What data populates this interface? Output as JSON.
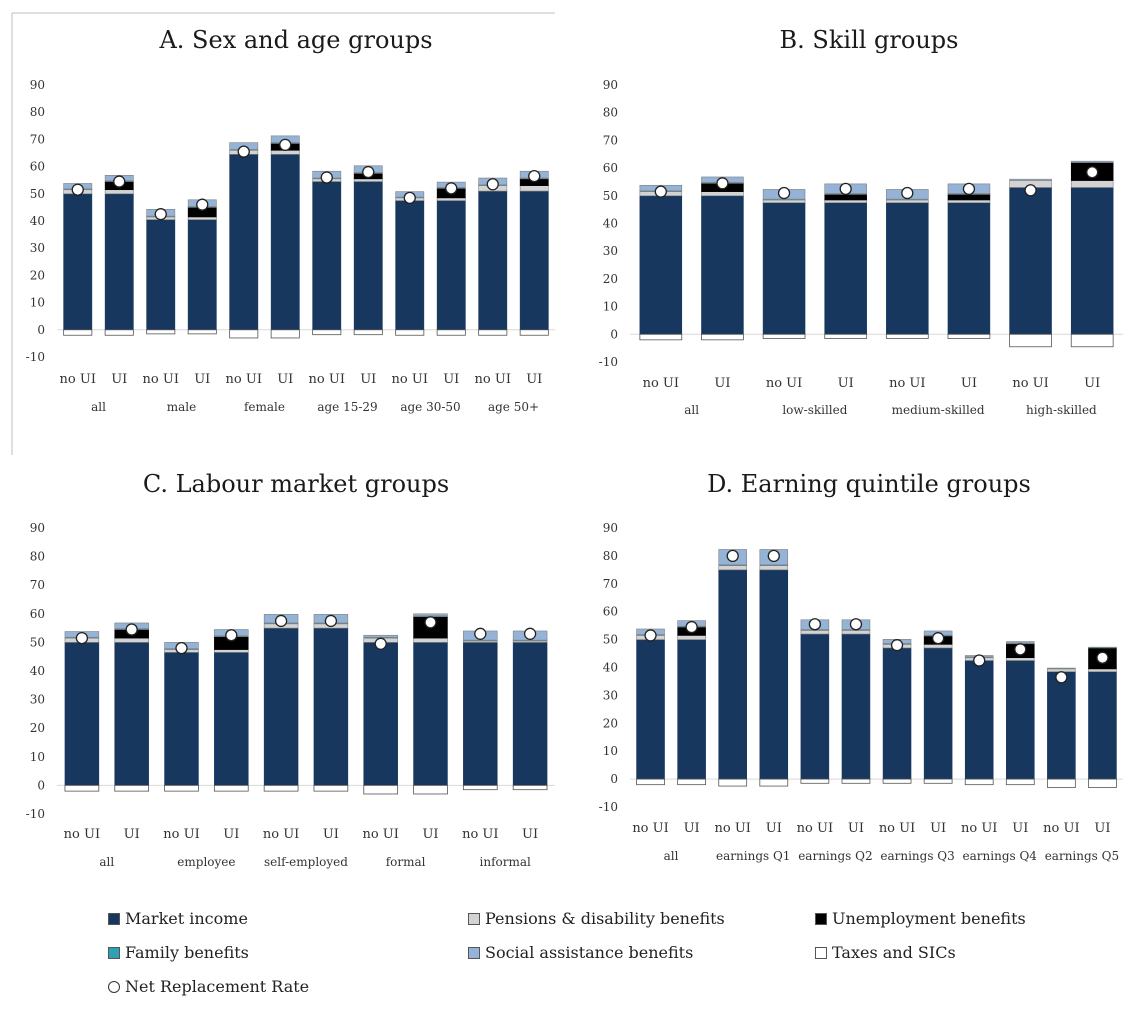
{
  "colors": {
    "market": "#17375e",
    "pensions": "#d3d3d3",
    "unemployment": "#000000",
    "family": "#31a0b5",
    "social": "#95b3d7",
    "taxes": "#ffffff",
    "nrr": "#ffffff"
  },
  "legend": [
    {
      "key": "market",
      "label": "Market income",
      "shape": "square"
    },
    {
      "key": "pensions",
      "label": "Pensions & disability benefits",
      "shape": "square"
    },
    {
      "key": "unemployment",
      "label": "Unemployment benefits",
      "shape": "square"
    },
    {
      "key": "family",
      "label": "Family benefits",
      "shape": "square"
    },
    {
      "key": "social",
      "label": "Social assistance benefits",
      "shape": "square"
    },
    {
      "key": "taxes",
      "label": "Taxes and SICs",
      "shape": "square"
    },
    {
      "key": "nrr",
      "label": "Net Replacement Rate",
      "shape": "circle"
    }
  ],
  "chart_data": [
    {
      "type": "bar",
      "stacked": true,
      "title": "A. Sex and age groups",
      "ylim": [
        -10,
        90
      ],
      "yticks": [
        -10,
        0,
        10,
        20,
        30,
        40,
        50,
        60,
        70,
        80,
        90
      ],
      "groups": [
        "all",
        "male",
        "female",
        "age 15-29",
        "age 30-50",
        "age 50+"
      ],
      "categories": [
        "no UI",
        "UI",
        "no UI",
        "UI",
        "no UI",
        "UI",
        "no UI",
        "UI",
        "no UI",
        "UI",
        "no UI",
        "UI"
      ],
      "series": [
        {
          "key": "market",
          "name": "Market income",
          "values": [
            50,
            50,
            40.5,
            40.5,
            64.5,
            64.5,
            54.5,
            54.5,
            47.5,
            47.5,
            51,
            51
          ]
        },
        {
          "key": "pensions",
          "name": "Pensions & disability benefits",
          "values": [
            1.5,
            1.5,
            1,
            1,
            1.5,
            1.5,
            1,
            1,
            1,
            1,
            2,
            2
          ]
        },
        {
          "key": "unemployment",
          "name": "Unemployment benefits",
          "values": [
            0,
            3,
            0,
            3.5,
            0,
            2.5,
            0,
            2,
            0,
            3.5,
            0,
            2.5
          ]
        },
        {
          "key": "family",
          "name": "Family benefits",
          "values": [
            0.3,
            0.3,
            0.3,
            0.3,
            0.3,
            0.3,
            0.3,
            0.3,
            0.3,
            0.3,
            0.3,
            0.3
          ]
        },
        {
          "key": "social",
          "name": "Social assistance benefits",
          "values": [
            2,
            2,
            2.5,
            2.5,
            2.5,
            2.5,
            2.5,
            2.5,
            2,
            2,
            2.5,
            2.5
          ]
        },
        {
          "key": "taxes",
          "name": "Taxes and SICs",
          "values": [
            -2,
            -2,
            -1.5,
            -1.5,
            -3,
            -3,
            -1.8,
            -1.8,
            -2,
            -2,
            -2,
            -2
          ]
        }
      ],
      "nrr": [
        51.5,
        54.5,
        42.5,
        46,
        65.5,
        68,
        56,
        58,
        48.5,
        52,
        53.5,
        56.5
      ]
    },
    {
      "type": "bar",
      "stacked": true,
      "title": "B. Skill groups",
      "ylim": [
        -10,
        90
      ],
      "yticks": [
        -10,
        0,
        10,
        20,
        30,
        40,
        50,
        60,
        70,
        80,
        90
      ],
      "groups": [
        "all",
        "low-skilled",
        "medium-skilled",
        "high-skilled"
      ],
      "categories": [
        "no UI",
        "UI",
        "no UI",
        "UI",
        "no UI",
        "UI",
        "no UI",
        "UI"
      ],
      "series": [
        {
          "key": "market",
          "name": "Market income",
          "values": [
            50,
            50,
            47.5,
            47.5,
            47.5,
            47.5,
            53,
            53
          ]
        },
        {
          "key": "pensions",
          "name": "Pensions & disability benefits",
          "values": [
            1.5,
            1.5,
            1,
            1,
            1,
            1,
            2.5,
            2.5
          ]
        },
        {
          "key": "unemployment",
          "name": "Unemployment benefits",
          "values": [
            0,
            3,
            0,
            2,
            0,
            2,
            0,
            6.5
          ]
        },
        {
          "key": "family",
          "name": "Family benefits",
          "values": [
            0.3,
            0.3,
            0.3,
            0.3,
            0.3,
            0.3,
            0,
            0
          ]
        },
        {
          "key": "social",
          "name": "Social assistance benefits",
          "values": [
            2,
            2,
            3.5,
            3.5,
            3.5,
            3.5,
            0.5,
            0.5
          ]
        },
        {
          "key": "taxes",
          "name": "Taxes and SICs",
          "values": [
            -2,
            -2,
            -1.5,
            -1.5,
            -1.5,
            -1.5,
            -4.5,
            -4.5
          ]
        }
      ],
      "nrr": [
        51.5,
        54.5,
        51,
        52.5,
        51,
        52.5,
        52,
        58.5
      ]
    },
    {
      "type": "bar",
      "stacked": true,
      "title": "C. Labour market groups",
      "ylim": [
        -10,
        90
      ],
      "yticks": [
        -10,
        0,
        10,
        20,
        30,
        40,
        50,
        60,
        70,
        80,
        90
      ],
      "groups": [
        "all",
        "employee",
        "self-employed",
        "formal",
        "informal"
      ],
      "categories": [
        "no UI",
        "UI",
        "no UI",
        "UI",
        "no UI",
        "UI",
        "no UI",
        "UI",
        "no UI",
        "UI"
      ],
      "series": [
        {
          "key": "market",
          "name": "Market income",
          "values": [
            50,
            50,
            46.5,
            46.5,
            55,
            55,
            50,
            50,
            50,
            50
          ]
        },
        {
          "key": "pensions",
          "name": "Pensions & disability benefits",
          "values": [
            1.5,
            1.5,
            1,
            1,
            1.5,
            1.5,
            1.5,
            1.5,
            0.5,
            0.5
          ]
        },
        {
          "key": "unemployment",
          "name": "Unemployment benefits",
          "values": [
            0,
            3,
            0,
            4.5,
            0,
            0,
            0,
            7.5,
            0,
            0
          ]
        },
        {
          "key": "family",
          "name": "Family benefits",
          "values": [
            0.3,
            0.3,
            0.3,
            0.3,
            0.3,
            0.3,
            0.3,
            0.3,
            0.3,
            0.3
          ]
        },
        {
          "key": "social",
          "name": "Social assistance benefits",
          "values": [
            2,
            2,
            2.2,
            2.2,
            3,
            3,
            0.7,
            0.7,
            3.2,
            3.2
          ]
        },
        {
          "key": "taxes",
          "name": "Taxes and SICs",
          "values": [
            -2,
            -2,
            -2,
            -2,
            -2,
            -2,
            -3,
            -3,
            -1.5,
            -1.5
          ]
        }
      ],
      "nrr": [
        51.5,
        54.5,
        48,
        52.5,
        57.5,
        57.5,
        49.5,
        57,
        53,
        53
      ]
    },
    {
      "type": "bar",
      "stacked": true,
      "title": "D. Earning quintile groups",
      "ylim": [
        -10,
        90
      ],
      "yticks": [
        -10,
        0,
        10,
        20,
        30,
        40,
        50,
        60,
        70,
        80,
        90
      ],
      "groups": [
        "all",
        "earnings Q1",
        "earnings Q2",
        "earnings Q3",
        "earnings Q4",
        "earnings Q5"
      ],
      "categories": [
        "no UI",
        "UI",
        "no UI",
        "UI",
        "no UI",
        "UI",
        "no UI",
        "UI",
        "no UI",
        "UI",
        "no UI",
        "UI"
      ],
      "series": [
        {
          "key": "market",
          "name": "Market income",
          "values": [
            50,
            50,
            75,
            75,
            52,
            52,
            47,
            47,
            42.5,
            42.5,
            38.5,
            38.5
          ]
        },
        {
          "key": "pensions",
          "name": "Pensions & disability benefits",
          "values": [
            1.5,
            1.5,
            1.5,
            1.5,
            1.3,
            1.3,
            1.3,
            1.3,
            1,
            1,
            1,
            1
          ]
        },
        {
          "key": "unemployment",
          "name": "Unemployment benefits",
          "values": [
            0,
            3,
            0,
            0,
            0,
            0,
            0,
            3,
            0,
            5,
            0,
            7.5
          ]
        },
        {
          "key": "family",
          "name": "Family benefits",
          "values": [
            0.3,
            0.3,
            0.3,
            0.3,
            0.3,
            0.3,
            0.3,
            0.3,
            0.3,
            0.3,
            0.3,
            0.3
          ]
        },
        {
          "key": "social",
          "name": "Social assistance benefits",
          "values": [
            2,
            2,
            5.5,
            5.5,
            3.5,
            3.5,
            1.5,
            1.5,
            0.5,
            0.5,
            0,
            0
          ]
        },
        {
          "key": "taxes",
          "name": "Taxes and SICs",
          "values": [
            -2,
            -2,
            -2.5,
            -2.5,
            -1.5,
            -1.5,
            -1.5,
            -1.5,
            -2,
            -2,
            -3,
            -3
          ]
        }
      ],
      "nrr": [
        51.5,
        54.5,
        80,
        80,
        55.5,
        55.5,
        48,
        50.5,
        42.5,
        46.5,
        36.5,
        43.5
      ]
    }
  ]
}
